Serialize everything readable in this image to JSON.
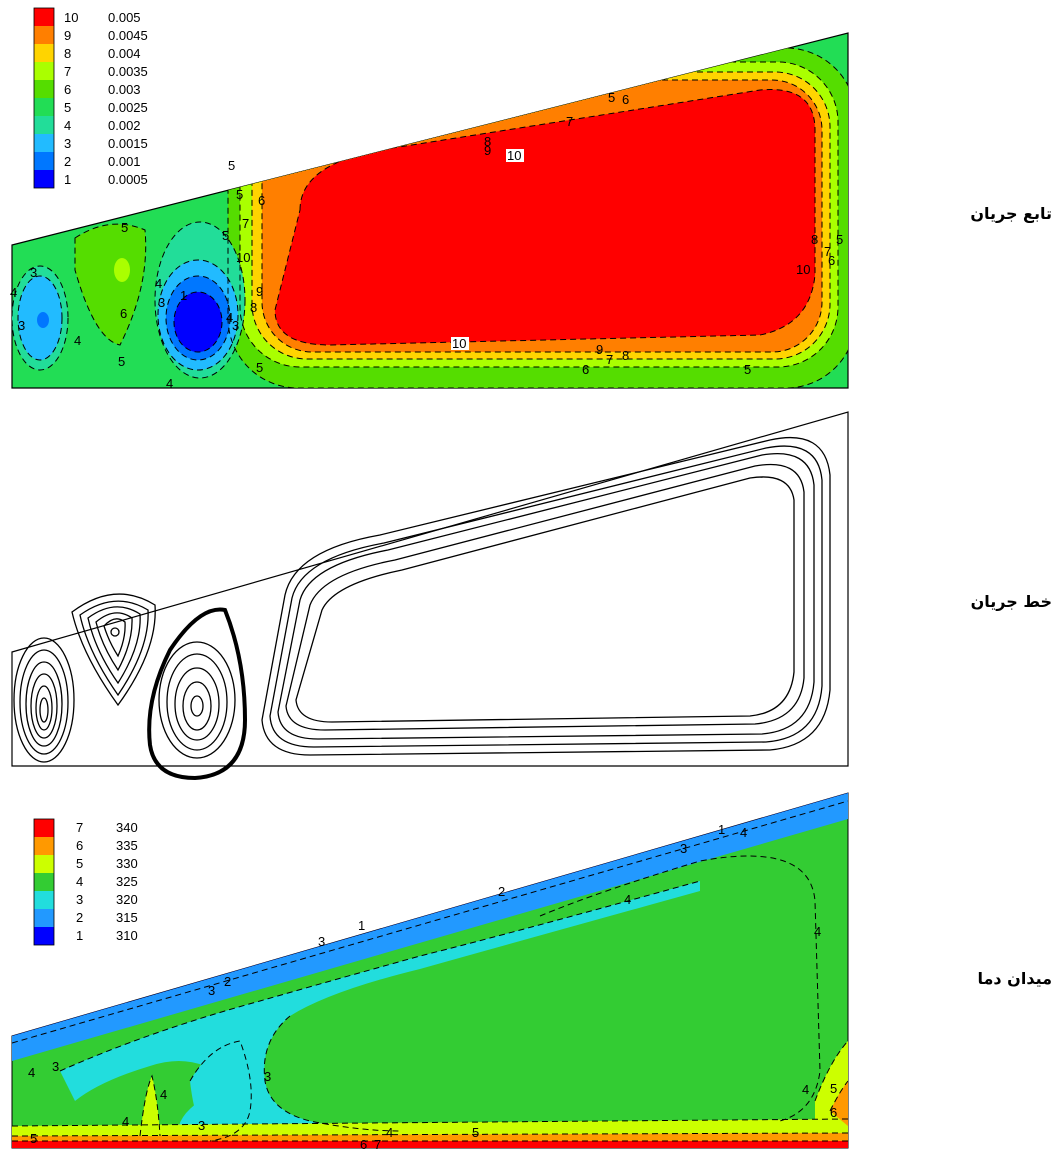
{
  "panels": {
    "stream_function": {
      "title": "تابع جریان",
      "legend": [
        {
          "level": "10",
          "value": "0.005",
          "color": "#ff0000"
        },
        {
          "level": "9",
          "value": "0.0045",
          "color": "#ff7f00"
        },
        {
          "level": "8",
          "value": "0.004",
          "color": "#ffd400"
        },
        {
          "level": "7",
          "value": "0.0035",
          "color": "#aaff00"
        },
        {
          "level": "6",
          "value": "0.003",
          "color": "#55dd00"
        },
        {
          "level": "5",
          "value": "0.0025",
          "color": "#22dd55"
        },
        {
          "level": "4",
          "value": "0.002",
          "color": "#22dd99"
        },
        {
          "level": "3",
          "value": "0.0015",
          "color": "#22bbff"
        },
        {
          "level": "2",
          "value": "0.001",
          "color": "#0077ff"
        },
        {
          "level": "1",
          "value": "0.0005",
          "color": "#0000ff"
        }
      ],
      "contour_labels": [
        "10",
        "9",
        "8",
        "7",
        "6",
        "5",
        "4",
        "3",
        "2",
        "1"
      ]
    },
    "streamlines": {
      "title": "خط جریان"
    },
    "temperature": {
      "title": "میدان دما",
      "legend": [
        {
          "level": "7",
          "value": "340",
          "color": "#ff0000"
        },
        {
          "level": "6",
          "value": "335",
          "color": "#ff9900"
        },
        {
          "level": "5",
          "value": "330",
          "color": "#ccff00"
        },
        {
          "level": "4",
          "value": "325",
          "color": "#33cc33"
        },
        {
          "level": "3",
          "value": "320",
          "color": "#22dddd"
        },
        {
          "level": "2",
          "value": "315",
          "color": "#2299ff"
        },
        {
          "level": "1",
          "value": "310",
          "color": "#0000ff"
        }
      ],
      "contour_labels": [
        "1",
        "2",
        "3",
        "4",
        "5",
        "6",
        "7"
      ]
    }
  }
}
